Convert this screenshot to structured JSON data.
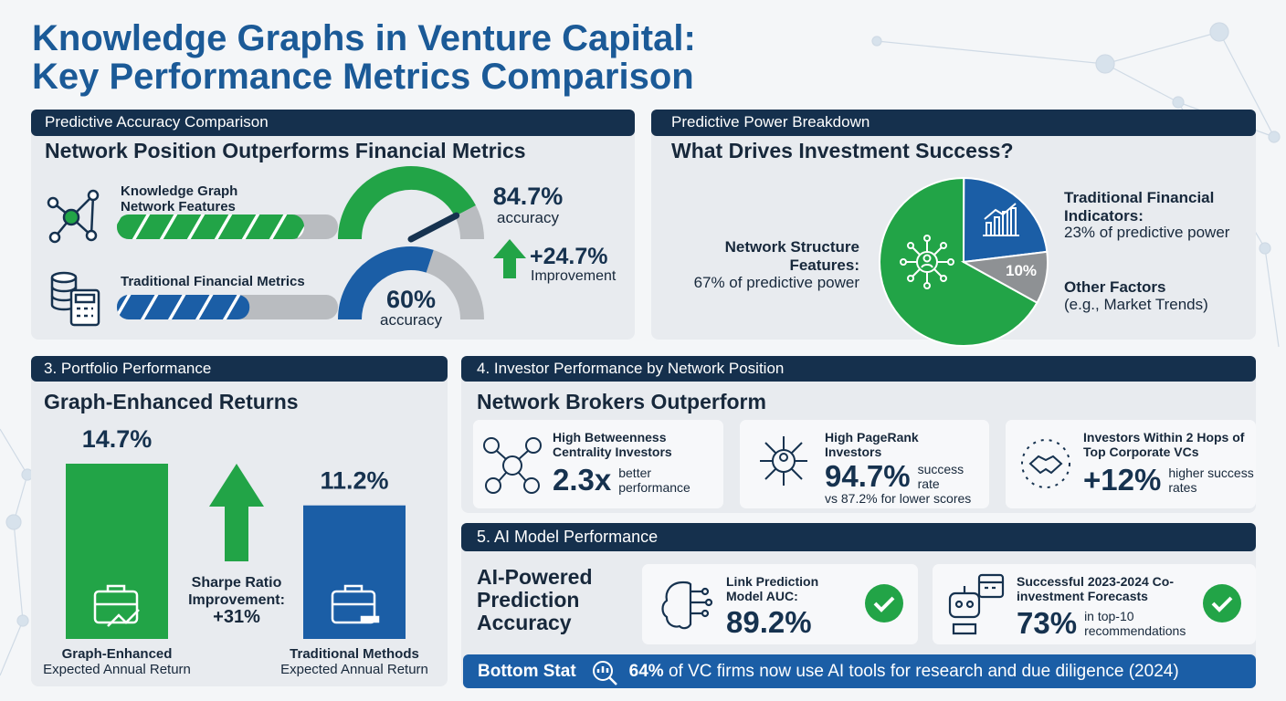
{
  "title": [
    "Knowledge Graphs in Venture Capital:",
    "Key Performance Metrics Comparison"
  ],
  "accuracy": {
    "header": "Predictive Accuracy Comparison",
    "subtitle": "Network Position Outperforms Financial Metrics",
    "range": [
      0,
      100
    ],
    "gauges": [
      {
        "label": "Knowledge Graph Network Features",
        "value": 84.7,
        "value_label": "84.7%",
        "unit": "accuracy",
        "color": "#22a447"
      },
      {
        "label": "Traditional Financial Metrics",
        "value": 60,
        "value_label": "60%",
        "unit": "accuracy",
        "color": "#1b5ea6"
      }
    ],
    "improvement": {
      "value": "+24.7%",
      "label": "Improvement"
    }
  },
  "breakdown": {
    "header": "Predictive Power Breakdown",
    "subtitle": "What Drives Investment Success?",
    "slices": [
      {
        "name": "Network Structure Features:",
        "value": 67,
        "label": "67% of predictive power",
        "color": "#22a447"
      },
      {
        "name": "Traditional Financial Indicators:",
        "value": 23,
        "label": "23% of predictive power",
        "color": "#1b5ea6"
      },
      {
        "name": "Other Factors",
        "value": 10,
        "label": "10%",
        "note": "(e.g., Market Trends)",
        "color": "#8e9194"
      }
    ]
  },
  "portfolio": {
    "header": "3. Portfolio Performance",
    "subtitle": "Graph-Enhanced Returns",
    "bars": [
      {
        "name": "Graph-Enhanced",
        "caption": "Expected Annual Return",
        "value": 14.7,
        "label": "14.7%",
        "color": "#22a447"
      },
      {
        "name": "Traditional Methods",
        "caption": "Expected Annual Return",
        "value": 11.2,
        "label": "11.2%",
        "color": "#1b5ea6"
      }
    ],
    "sharpe": {
      "text": "Sharpe Ratio Improvement:",
      "value": "+31%"
    }
  },
  "brokers": {
    "header": "4. Investor Performance by Network Position",
    "subtitle": "Network Brokers Outperform",
    "cards": [
      {
        "title": "High Betweenness Centrality Investors",
        "stat": "2.3x",
        "detail": "better performance"
      },
      {
        "title": "High PageRank Investors",
        "stat": "94.7%",
        "detail": "success rate",
        "note": "vs 87.2% for lower scores"
      },
      {
        "title": "Investors Within 2 Hops of Top Corporate VCs",
        "stat": "+12%",
        "detail": "higher success rates"
      }
    ]
  },
  "ai": {
    "header": "5. AI Model Performance",
    "subtitle": "AI-Powered Prediction Accuracy",
    "cards": [
      {
        "title": "Link Prediction Model AUC:",
        "stat": "89.2%"
      },
      {
        "title": "Successful 2023-2024 Co-investment Forecasts",
        "stat": "73%",
        "detail": "in top-10 recommendations"
      }
    ]
  },
  "bottom": {
    "label": "Bottom Stat",
    "highlight": "64%",
    "text": "of VC firms now use AI tools for research and due diligence (2024)"
  }
}
